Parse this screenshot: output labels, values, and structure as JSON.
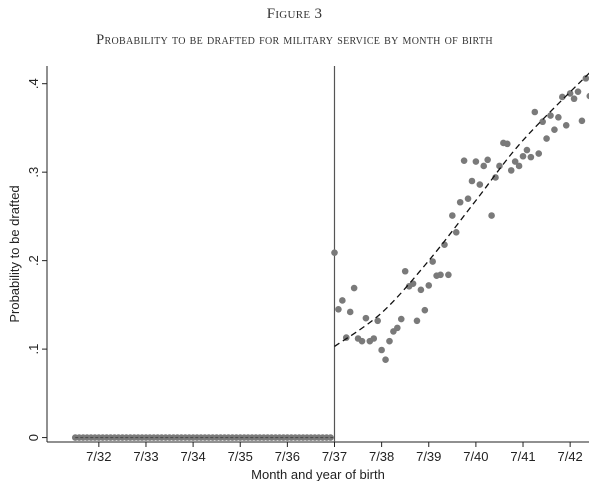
{
  "figure": {
    "number": "Figure 3",
    "title": "Probability to be drafted for military service by month of birth"
  },
  "chart_data": {
    "type": "scatter",
    "xlabel": "Month and year of birth",
    "ylabel": "Probability to be drafted",
    "xlim": [
      1931.4,
      1942.9
    ],
    "ylim": [
      -0.005,
      0.42
    ],
    "x_tick_labels": [
      "7/32",
      "7/33",
      "7/34",
      "7/35",
      "7/36",
      "7/37",
      "7/38",
      "7/39",
      "7/40",
      "7/41",
      "7/42"
    ],
    "y_tick_labels": [
      ".4",
      ".3",
      ".2",
      ".1",
      "0"
    ],
    "y_ticks": [
      0.4,
      0.3,
      0.2,
      0.1,
      0
    ],
    "cutoff_line_x": "7/37",
    "point_color": "#7a7a7a",
    "fit_line_style": "dashed",
    "series": [
      {
        "points": [
          {
            "x": "1/32",
            "y": 0
          },
          {
            "x": "2/32",
            "y": 0
          },
          {
            "x": "3/32",
            "y": 0
          },
          {
            "x": "4/32",
            "y": 0
          },
          {
            "x": "5/32",
            "y": 0
          },
          {
            "x": "6/32",
            "y": 0
          },
          {
            "x": "7/32",
            "y": 0
          },
          {
            "x": "8/32",
            "y": 0
          },
          {
            "x": "9/32",
            "y": 0
          },
          {
            "x": "10/32",
            "y": 0
          },
          {
            "x": "11/32",
            "y": 0
          },
          {
            "x": "12/32",
            "y": 0
          },
          {
            "x": "1/33",
            "y": 0
          },
          {
            "x": "2/33",
            "y": 0
          },
          {
            "x": "3/33",
            "y": 0
          },
          {
            "x": "4/33",
            "y": 0
          },
          {
            "x": "5/33",
            "y": 0
          },
          {
            "x": "6/33",
            "y": 0
          },
          {
            "x": "7/33",
            "y": 0
          },
          {
            "x": "8/33",
            "y": 0
          },
          {
            "x": "9/33",
            "y": 0
          },
          {
            "x": "10/33",
            "y": 0
          },
          {
            "x": "11/33",
            "y": 0
          },
          {
            "x": "12/33",
            "y": 0
          },
          {
            "x": "1/34",
            "y": 0
          },
          {
            "x": "2/34",
            "y": 0
          },
          {
            "x": "3/34",
            "y": 0
          },
          {
            "x": "4/34",
            "y": 0
          },
          {
            "x": "5/34",
            "y": 0
          },
          {
            "x": "6/34",
            "y": 0
          },
          {
            "x": "7/34",
            "y": 0
          },
          {
            "x": "8/34",
            "y": 0
          },
          {
            "x": "9/34",
            "y": 0
          },
          {
            "x": "10/34",
            "y": 0
          },
          {
            "x": "11/34",
            "y": 0
          },
          {
            "x": "12/34",
            "y": 0
          },
          {
            "x": "1/35",
            "y": 0
          },
          {
            "x": "2/35",
            "y": 0
          },
          {
            "x": "3/35",
            "y": 0
          },
          {
            "x": "4/35",
            "y": 0
          },
          {
            "x": "5/35",
            "y": 0
          },
          {
            "x": "6/35",
            "y": 0
          },
          {
            "x": "7/35",
            "y": 0
          },
          {
            "x": "8/35",
            "y": 0
          },
          {
            "x": "9/35",
            "y": 0
          },
          {
            "x": "10/35",
            "y": 0
          },
          {
            "x": "11/35",
            "y": 0
          },
          {
            "x": "12/35",
            "y": 0
          },
          {
            "x": "1/36",
            "y": 0
          },
          {
            "x": "2/36",
            "y": 0
          },
          {
            "x": "3/36",
            "y": 0
          },
          {
            "x": "4/36",
            "y": 0
          },
          {
            "x": "5/36",
            "y": 0
          },
          {
            "x": "6/36",
            "y": 0
          },
          {
            "x": "7/36",
            "y": 0
          },
          {
            "x": "8/36",
            "y": 0
          },
          {
            "x": "9/36",
            "y": 0
          },
          {
            "x": "10/36",
            "y": 0
          },
          {
            "x": "11/36",
            "y": 0
          },
          {
            "x": "12/36",
            "y": 0
          },
          {
            "x": "1/37",
            "y": 0
          },
          {
            "x": "2/37",
            "y": 0
          },
          {
            "x": "3/37",
            "y": 0
          },
          {
            "x": "4/37",
            "y": 0
          },
          {
            "x": "5/37",
            "y": 0
          },
          {
            "x": "6/37",
            "y": 0
          },
          {
            "x": "7/37",
            "y": 0.209
          },
          {
            "x": "8/37",
            "y": 0.145
          },
          {
            "x": "9/37",
            "y": 0.155
          },
          {
            "x": "10/37",
            "y": 0.113
          },
          {
            "x": "11/37",
            "y": 0.142
          },
          {
            "x": "12/37",
            "y": 0.169
          },
          {
            "x": "1/38",
            "y": 0.112
          },
          {
            "x": "2/38",
            "y": 0.109
          },
          {
            "x": "3/38",
            "y": 0.135
          },
          {
            "x": "4/38",
            "y": 0.109
          },
          {
            "x": "5/38",
            "y": 0.112
          },
          {
            "x": "6/38",
            "y": 0.132
          },
          {
            "x": "7/38",
            "y": 0.099
          },
          {
            "x": "8/38",
            "y": 0.088
          },
          {
            "x": "9/38",
            "y": 0.109
          },
          {
            "x": "10/38",
            "y": 0.12
          },
          {
            "x": "11/38",
            "y": 0.124
          },
          {
            "x": "12/38",
            "y": 0.134
          },
          {
            "x": "1/39",
            "y": 0.188
          },
          {
            "x": "2/39",
            "y": 0.171
          },
          {
            "x": "3/39",
            "y": 0.174
          },
          {
            "x": "4/39",
            "y": 0.132
          },
          {
            "x": "5/39",
            "y": 0.167
          },
          {
            "x": "6/39",
            "y": 0.144
          },
          {
            "x": "7/39",
            "y": 0.172
          },
          {
            "x": "8/39",
            "y": 0.199
          },
          {
            "x": "9/39",
            "y": 0.183
          },
          {
            "x": "10/39",
            "y": 0.184
          },
          {
            "x": "11/39",
            "y": 0.218
          },
          {
            "x": "12/39",
            "y": 0.184
          },
          {
            "x": "1/40",
            "y": 0.251
          },
          {
            "x": "2/40",
            "y": 0.232
          },
          {
            "x": "3/40",
            "y": 0.266
          },
          {
            "x": "4/40",
            "y": 0.313
          },
          {
            "x": "5/40",
            "y": 0.27
          },
          {
            "x": "6/40",
            "y": 0.29
          },
          {
            "x": "7/40",
            "y": 0.312
          },
          {
            "x": "8/40",
            "y": 0.286
          },
          {
            "x": "9/40",
            "y": 0.307
          },
          {
            "x": "10/40",
            "y": 0.314
          },
          {
            "x": "11/40",
            "y": 0.251
          },
          {
            "x": "12/40",
            "y": 0.294
          },
          {
            "x": "1/41",
            "y": 0.307
          },
          {
            "x": "2/41",
            "y": 0.333
          },
          {
            "x": "3/41",
            "y": 0.332
          },
          {
            "x": "4/41",
            "y": 0.302
          },
          {
            "x": "5/41",
            "y": 0.312
          },
          {
            "x": "6/41",
            "y": 0.307
          },
          {
            "x": "7/41",
            "y": 0.318
          },
          {
            "x": "8/41",
            "y": 0.325
          },
          {
            "x": "9/41",
            "y": 0.317
          },
          {
            "x": "10/41",
            "y": 0.368
          },
          {
            "x": "11/41",
            "y": 0.321
          },
          {
            "x": "12/41",
            "y": 0.357
          },
          {
            "x": "1/42",
            "y": 0.338
          },
          {
            "x": "2/42",
            "y": 0.364
          },
          {
            "x": "3/42",
            "y": 0.348
          },
          {
            "x": "4/42",
            "y": 0.362
          },
          {
            "x": "5/42",
            "y": 0.385
          },
          {
            "x": "6/42",
            "y": 0.353
          },
          {
            "x": "7/42",
            "y": 0.389
          },
          {
            "x": "8/42",
            "y": 0.383
          },
          {
            "x": "9/42",
            "y": 0.391
          },
          {
            "x": "10/42",
            "y": 0.358
          },
          {
            "x": "11/42",
            "y": 0.406
          },
          {
            "x": "12/42",
            "y": 0.386
          }
        ]
      }
    ],
    "fit_line": [
      {
        "x": "7/37",
        "y": 0.103
      },
      {
        "x": "7/38",
        "y": 0.141
      },
      {
        "x": "7/39",
        "y": 0.2
      },
      {
        "x": "7/40",
        "y": 0.268
      },
      {
        "x": "7/41",
        "y": 0.336
      },
      {
        "x": "1/43",
        "y": 0.417
      }
    ]
  }
}
